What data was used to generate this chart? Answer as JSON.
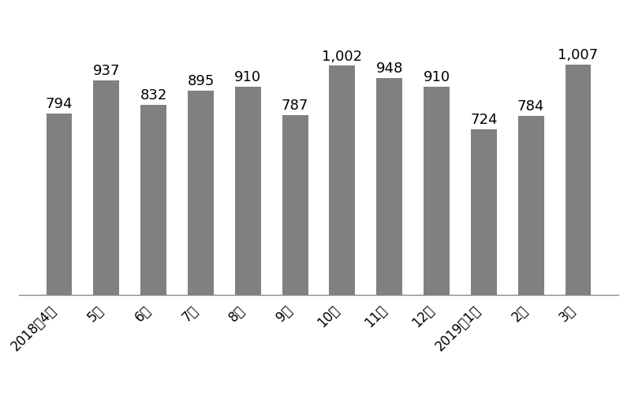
{
  "categories": [
    "2018年4月",
    "5月",
    "6月",
    "7月",
    "8月",
    "9月",
    "10月",
    "11月",
    "12月",
    "2019年1月",
    "2月",
    "3月"
  ],
  "values": [
    794,
    937,
    832,
    895,
    910,
    787,
    1002,
    948,
    910,
    724,
    784,
    1007
  ],
  "bar_color": "#808080",
  "bar_width": 0.55,
  "background_color": "#ffffff",
  "label_fontsize": 13,
  "tick_fontsize": 12,
  "ylim": [
    0,
    1200
  ],
  "value_labels": [
    "794",
    "937",
    "832",
    "895",
    "910",
    "787",
    "1,002",
    "948",
    "910",
    "724",
    "784",
    "1,007"
  ]
}
